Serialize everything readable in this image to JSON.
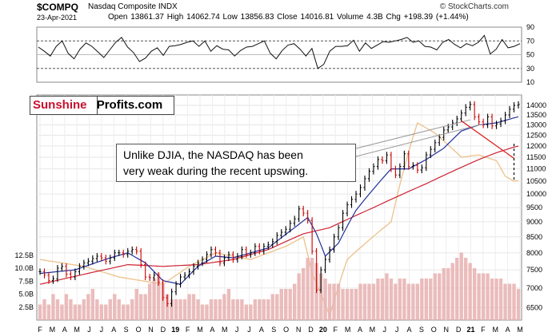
{
  "header": {
    "ticker": "$COMPQ",
    "exchange_name": "Nasdaq Composite INDX",
    "brand": "© StockCharts.com",
    "date": "23-Apr-2021",
    "ohlc_text": "Open 13861.37  High 14062.74  Low 13856.83  Close 14016.81  Volume 4.3B  Chg +198.39 (+1.44%)",
    "up_arrow": "▲"
  },
  "logo": {
    "part1": "Sunshine",
    "part2": "Profits.com"
  },
  "annotation": {
    "line1": "Unlike DJIA, the NASDAQ has been",
    "line2": "very weak during the recent upswing."
  },
  "colors": {
    "price_up": "#000000",
    "price_down": "#cc0000",
    "ma_short": "#1f2f9a",
    "ma_long": "#cc2233",
    "overlay": "#e8b878",
    "volume": "#e8b0b0",
    "trendline": "#999999",
    "red_line": "#dd2222"
  },
  "chart_data": [
    {
      "type": "line",
      "title": "",
      "ylim": [
        10,
        90
      ],
      "yticks": [
        "90",
        "70",
        "50",
        "30",
        "10"
      ],
      "reference_lines": [
        70,
        30
      ],
      "series": [
        {
          "values": [
            61,
            55,
            48,
            62,
            70,
            52,
            44,
            58,
            67,
            62,
            54,
            46,
            57,
            68,
            75,
            61,
            53,
            40,
            45,
            55,
            60,
            49,
            62,
            63,
            65,
            68,
            70,
            62,
            70,
            55,
            63,
            58,
            57,
            48,
            56,
            61,
            62,
            66,
            70,
            52,
            44,
            56,
            64,
            66,
            58,
            48,
            59,
            30,
            36,
            55,
            62,
            62,
            63,
            71,
            55,
            67,
            59,
            64,
            69,
            68,
            70,
            72,
            75,
            68,
            70,
            62,
            61,
            57,
            68,
            72,
            65,
            60,
            66,
            63,
            68,
            78,
            51,
            58,
            72,
            60,
            62,
            66
          ]
        }
      ]
    },
    {
      "type": "line",
      "title": "",
      "ylim": [
        6200,
        14300
      ],
      "yticks": [
        "14000",
        "13500",
        "13000",
        "12500",
        "12000",
        "11500",
        "11000",
        "10500",
        "10000",
        "9500",
        "9000",
        "8500",
        "8000",
        "7500",
        "7000",
        "6500"
      ],
      "y2_ticks": [
        "12.5B",
        "10.0B",
        "7.5B",
        "5.0B",
        "2.5B"
      ],
      "x_ticks": [
        "F",
        "M",
        "A",
        "M",
        "J",
        "J",
        "A",
        "S",
        "O",
        "N",
        "D",
        "19",
        "F",
        "M",
        "A",
        "M",
        "J",
        "J",
        "A",
        "S",
        "O",
        "N",
        "D",
        "20",
        "F",
        "M",
        "A",
        "M",
        "J",
        "J",
        "A",
        "S",
        "O",
        "N",
        "D",
        "21",
        "F",
        "M",
        "A",
        "M"
      ],
      "close": [
        7450,
        7350,
        7200,
        7250,
        7550,
        7600,
        7380,
        7300,
        7450,
        7600,
        7700,
        7750,
        7830,
        7900,
        7850,
        7750,
        7850,
        8000,
        8000,
        7950,
        8050,
        8100,
        8050,
        7650,
        7300,
        7280,
        7350,
        7150,
        6750,
        6600,
        6900,
        7100,
        7300,
        7350,
        7450,
        7600,
        7700,
        7800,
        7950,
        8100,
        8000,
        7700,
        7850,
        7950,
        7800,
        7900,
        8100,
        7950,
        8000,
        8200,
        8050,
        8200,
        8250,
        8350,
        8550,
        8650,
        8750,
        8950,
        9100,
        9450,
        9300,
        9050,
        8050,
        6950,
        7500,
        7800,
        8100,
        8500,
        8800,
        9300,
        9600,
        9800,
        10000,
        10250,
        10600,
        10900,
        11100,
        11400,
        11350,
        11600,
        11000,
        10750,
        11100,
        11650,
        11100,
        11150,
        10950,
        11050,
        11600,
        11850,
        12150,
        12400,
        12750,
        12900,
        13100,
        13300,
        13600,
        13900,
        14050,
        13400,
        13150,
        13000,
        13400,
        12950,
        13050,
        13200,
        13500,
        13800,
        14000,
        14050
      ],
      "ma50_knots": [
        [
          0,
          7400
        ],
        [
          8,
          7500
        ],
        [
          16,
          7850
        ],
        [
          20,
          8000
        ],
        [
          24,
          7700
        ],
        [
          28,
          7200
        ],
        [
          32,
          7100
        ],
        [
          36,
          7600
        ],
        [
          40,
          7900
        ],
        [
          44,
          7850
        ],
        [
          48,
          8000
        ],
        [
          52,
          8150
        ],
        [
          58,
          8800
        ],
        [
          61,
          9150
        ],
        [
          63,
          8600
        ],
        [
          65,
          7900
        ],
        [
          68,
          8300
        ],
        [
          72,
          9400
        ],
        [
          76,
          10200
        ],
        [
          80,
          11000
        ],
        [
          84,
          11000
        ],
        [
          88,
          11400
        ],
        [
          92,
          11900
        ],
        [
          96,
          12700
        ],
        [
          100,
          13000
        ],
        [
          104,
          13100
        ],
        [
          108,
          13350
        ]
      ],
      "ma200_knots": [
        [
          0,
          7100
        ],
        [
          20,
          7650
        ],
        [
          28,
          7600
        ],
        [
          36,
          7650
        ],
        [
          44,
          7800
        ],
        [
          52,
          8100
        ],
        [
          60,
          8600
        ],
        [
          66,
          8800
        ],
        [
          76,
          9500
        ],
        [
          88,
          10400
        ],
        [
          100,
          11400
        ],
        [
          104,
          11700
        ],
        [
          108,
          11950
        ]
      ],
      "overlay_dj_knots": [
        [
          0,
          7800
        ],
        [
          10,
          7600
        ],
        [
          18,
          7300
        ],
        [
          28,
          7100
        ],
        [
          34,
          7600
        ],
        [
          40,
          8000
        ],
        [
          48,
          7800
        ],
        [
          56,
          8200
        ],
        [
          60,
          8500
        ],
        [
          62,
          7400
        ],
        [
          66,
          6300
        ],
        [
          70,
          7800
        ],
        [
          80,
          9000
        ],
        [
          86,
          13100
        ],
        [
          90,
          12600
        ],
        [
          96,
          11500
        ],
        [
          100,
          11600
        ],
        [
          104,
          11350
        ],
        [
          106,
          10700
        ],
        [
          108,
          10500
        ]
      ],
      "volume": [
        3,
        4,
        3,
        5,
        4,
        3,
        5,
        4,
        3,
        3,
        4,
        5,
        6,
        4,
        3,
        3,
        4,
        5,
        4,
        3,
        3,
        4,
        6,
        5,
        5,
        7,
        8,
        9,
        7,
        5,
        4,
        4,
        4,
        4,
        5,
        5,
        4,
        3,
        3,
        4,
        4,
        4,
        5,
        6,
        4,
        4,
        4,
        3,
        3,
        4,
        4,
        4,
        4,
        5,
        5,
        6,
        6,
        6,
        7,
        9,
        10,
        12,
        12,
        11,
        9,
        8,
        7,
        7,
        7,
        6,
        6,
        6,
        6,
        7,
        7,
        7,
        7,
        8,
        8,
        9,
        8,
        7,
        8,
        8,
        7,
        7,
        7,
        8,
        8,
        8,
        9,
        9,
        10,
        10,
        11,
        12,
        13,
        12,
        11,
        10,
        9,
        9,
        9,
        8,
        8,
        8,
        7,
        7,
        7,
        6
      ]
    }
  ]
}
